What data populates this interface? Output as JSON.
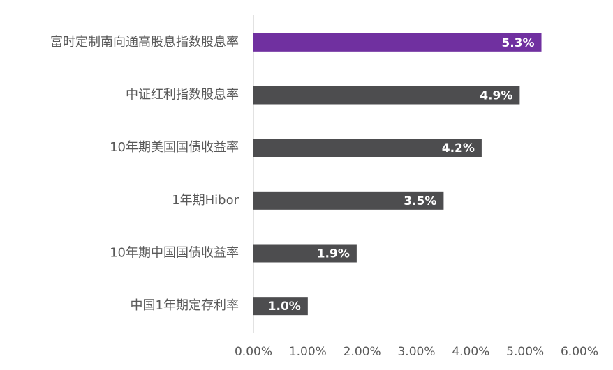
{
  "chart_data": {
    "type": "bar",
    "orientation": "horizontal",
    "categories": [
      "富时定制南向通高股息指数股息率",
      "中证红利指数股息率",
      "10年期美国国债收益率",
      "1年期Hibor",
      "10年期中国国债收益率",
      "中国1年期定存利率"
    ],
    "values": [
      5.3,
      4.9,
      4.2,
      3.5,
      1.9,
      1.0
    ],
    "value_labels": [
      "5.3%",
      "4.9%",
      "4.2%",
      "3.5%",
      "1.9%",
      "1.0%"
    ],
    "colors": [
      "#7030a0",
      "#4d4d4f",
      "#4d4d4f",
      "#4d4d4f",
      "#4d4d4f",
      "#4d4d4f"
    ],
    "xlim": [
      0,
      6
    ],
    "xticks": [
      {
        "value": 0,
        "label": "0.00%"
      },
      {
        "value": 1,
        "label": "1.00%"
      },
      {
        "value": 2,
        "label": "2.00%"
      },
      {
        "value": 3,
        "label": "3.00%"
      },
      {
        "value": 4,
        "label": "4.00%"
      },
      {
        "value": 5,
        "label": "5.00%"
      },
      {
        "value": 6,
        "label": "6.00%"
      }
    ]
  }
}
